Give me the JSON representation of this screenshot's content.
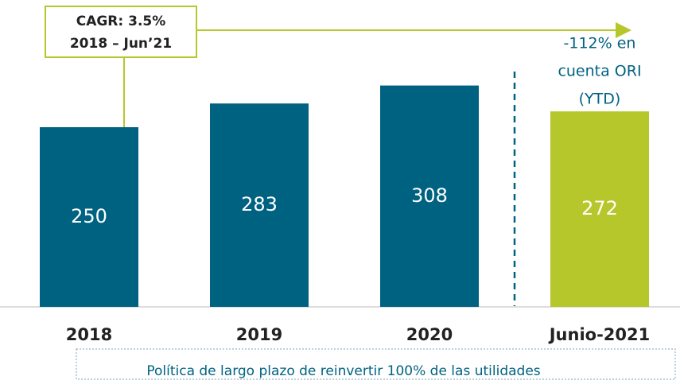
{
  "chart_data": {
    "type": "bar",
    "categories": [
      "2018",
      "2019",
      "2020",
      "Junio-2021"
    ],
    "values": [
      250,
      283,
      308,
      272
    ],
    "colors": [
      "#006281",
      "#006281",
      "#006281",
      "#b5c72a"
    ],
    "ylim": [
      0,
      427
    ],
    "annotations": {
      "cagr": [
        "CAGR: 3.5%",
        "2018 – Jun’21"
      ],
      "ori": [
        "-112% en",
        "cuenta ORI",
        "(YTD)"
      ]
    },
    "footer": "Política de largo plazo de reinvertir 100% de las utilidades"
  }
}
